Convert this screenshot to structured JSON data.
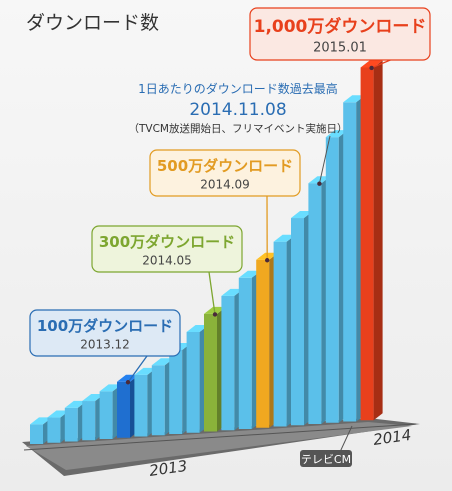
{
  "chart_data": {
    "type": "bar",
    "title": "ダウンロード数",
    "x_axis_labels": [
      "2013",
      "2014"
    ],
    "x_annotation": "テレビCM",
    "bars": [
      {
        "value": 3.5,
        "color": "#5bc0ea"
      },
      {
        "value": 4.5,
        "color": "#5bc0ea"
      },
      {
        "value": 6,
        "color": "#5bc0ea"
      },
      {
        "value": 7,
        "color": "#5bc0ea"
      },
      {
        "value": 8.5,
        "color": "#5bc0ea"
      },
      {
        "value": 10,
        "color": "#1f6fd0"
      },
      {
        "value": 11,
        "color": "#5bc0ea"
      },
      {
        "value": 12.5,
        "color": "#5bc0ea"
      },
      {
        "value": 15,
        "color": "#5bc0ea"
      },
      {
        "value": 18,
        "color": "#5bc0ea"
      },
      {
        "value": 21,
        "color": "#8ab23a"
      },
      {
        "value": 24,
        "color": "#5bc0ea"
      },
      {
        "value": 27,
        "color": "#5bc0ea"
      },
      {
        "value": 30,
        "color": "#f0a820"
      },
      {
        "value": 33,
        "color": "#5bc0ea"
      },
      {
        "value": 37,
        "color": "#5bc0ea"
      },
      {
        "value": 43,
        "color": "#5bc0ea"
      },
      {
        "value": 51,
        "color": "#5bc0ea"
      },
      {
        "value": 57,
        "color": "#5bc0ea"
      },
      {
        "value": 63,
        "color": "#e8401c"
      }
    ],
    "milestones": [
      {
        "label": "1,000万ダウンロード",
        "date": "2015.01",
        "bar_index": 19,
        "accent": "#e8401c",
        "fill": "#fbe8e2"
      },
      {
        "label": "500万ダウンロード",
        "date": "2014.09",
        "bar_index": 13,
        "accent": "#e29b22",
        "fill": "#fdf2df"
      },
      {
        "label": "300万ダウンロード",
        "date": "2014.05",
        "bar_index": 10,
        "accent": "#7da630",
        "fill": "#eef4dc"
      },
      {
        "label": "100万ダウンロード",
        "date": "2013.12",
        "bar_index": 5,
        "accent": "#2a6db3",
        "fill": "#dde9f5"
      }
    ],
    "peak_note": {
      "title": "1日あたりのダウンロード数過去最高",
      "date": "2014.11.08",
      "detail": "（TVCM放送開始日、フリマイベント実施日）",
      "bar_index": 16,
      "color": "#2a6db3"
    }
  }
}
